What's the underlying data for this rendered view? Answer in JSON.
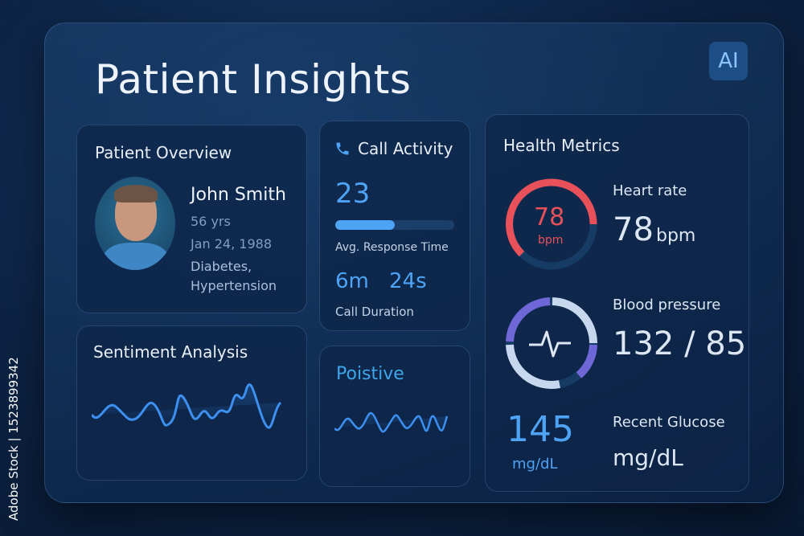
{
  "watermark": "Adobe Stock | 1523899342",
  "header": {
    "title": "Patient Insights",
    "badge": "AI"
  },
  "overview": {
    "title": "Patient Overview",
    "name": "John Smith",
    "age": "56 yrs",
    "dob": "Jan 24, 1988",
    "conditions_line1": "Diabetes,",
    "conditions_line2": "Hypertension"
  },
  "call": {
    "title": "Call Activity",
    "icon": "phone-icon",
    "count": "23",
    "progress": 0.5,
    "response_label": "Avg. Response Time",
    "duration_min": "6m",
    "duration_sec": "24s",
    "duration_label": "Call Duration"
  },
  "sentiment": {
    "title": "Sentiment Analysis",
    "result": "Poistive"
  },
  "health": {
    "title": "Health Metrics",
    "heart": {
      "gauge_value": "78",
      "gauge_unit": "bpm",
      "label": "Heart rate",
      "value": "78",
      "unit": "bpm",
      "color": "#e8505a"
    },
    "bp": {
      "label": "Blood pressure",
      "value": "132 / 85",
      "icon": "pulse-icon"
    },
    "glucose": {
      "value": "145",
      "unit": "mg/dL",
      "label": "Recent Glucose",
      "unit2": "mg/dL"
    }
  },
  "colors": {
    "accent": "#4ea3f5",
    "heart": "#e8505a",
    "bp_purple": "#6f66d8",
    "bp_light": "#c7d8ee"
  }
}
